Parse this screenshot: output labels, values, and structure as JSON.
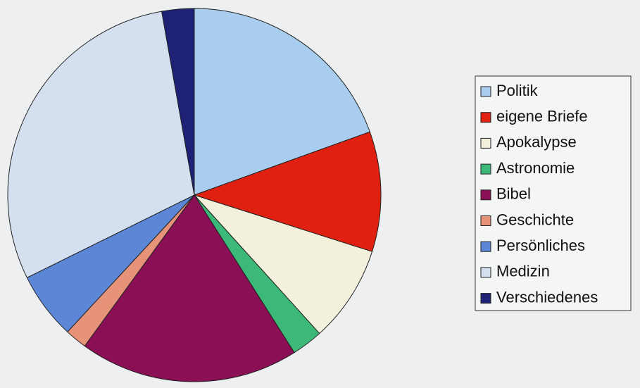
{
  "chart_data": {
    "type": "pie",
    "categories": [
      "Politik",
      "eigene Briefe",
      "Apokalypse",
      "Astronomie",
      "Bibel",
      "Geschichte",
      "Persönliches",
      "Medizin",
      "Verschiedenes"
    ],
    "values": [
      19.5,
      10.4,
      8.4,
      2.7,
      19,
      1.9,
      5.8,
      29.5,
      2.8
    ],
    "colors": [
      "#a9cdee",
      "#e02010",
      "#f3f1dc",
      "#3cb878",
      "#8a0f55",
      "#e6937a",
      "#5c86d6",
      "#d4e0f0",
      "#1e2175"
    ],
    "legend": "right"
  }
}
